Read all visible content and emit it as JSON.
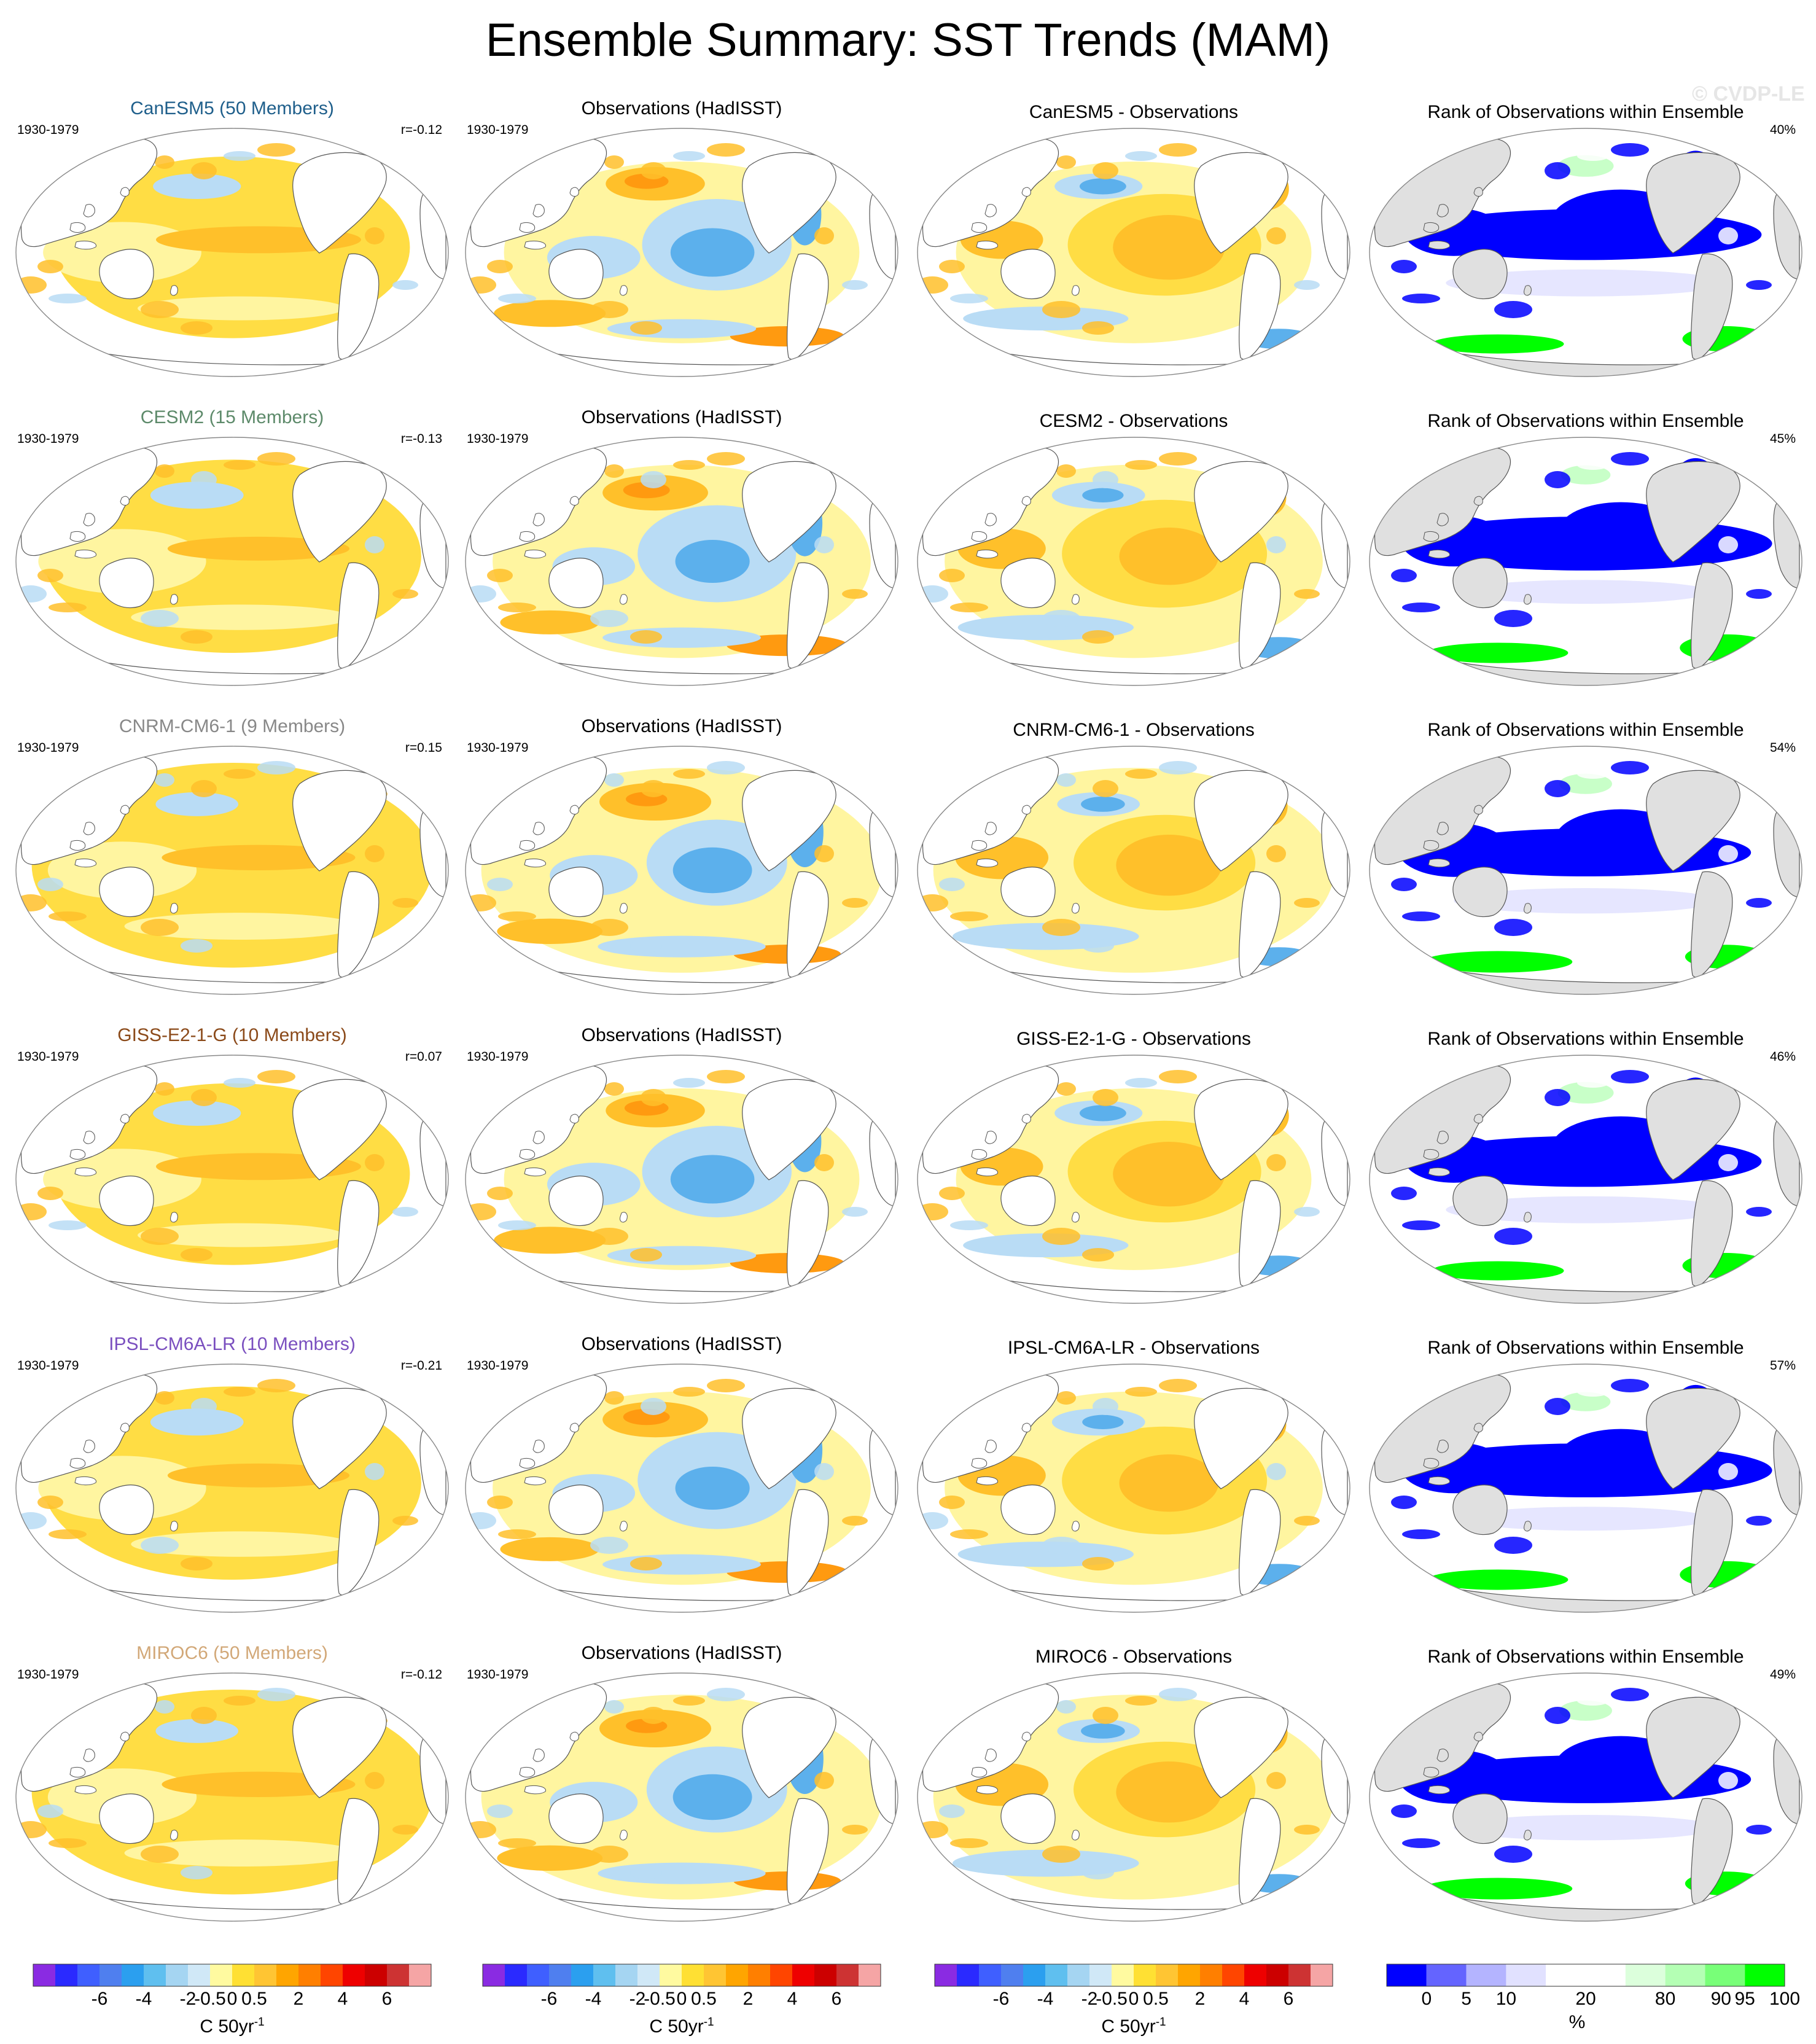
{
  "title": "Ensemble Summary: SST Trends (MAM)",
  "watermark": "© CVDP-LE",
  "period": "1930-1979",
  "obs_title": "Observations (HadISST)",
  "rank_title": "Rank of Observations within Ensemble",
  "rows": [
    {
      "model_title": "CanESM5 (50 Members)",
      "model_color": "#1f5f8b",
      "r": "r=-0.12",
      "diff_title": "CanESM5 - Observations",
      "rank_pct": "40%"
    },
    {
      "model_title": "CESM2 (15 Members)",
      "model_color": "#5d8a6a",
      "r": "r=-0.13",
      "diff_title": "CESM2 - Observations",
      "rank_pct": "45%"
    },
    {
      "model_title": "CNRM-CM6-1 (9 Members)",
      "model_color": "#888888",
      "r": "r=0.15",
      "diff_title": "CNRM-CM6-1 - Observations",
      "rank_pct": "54%"
    },
    {
      "model_title": "GISS-E2-1-G (10 Members)",
      "model_color": "#8b4a1a",
      "r": "r=0.07",
      "diff_title": "GISS-E2-1-G - Observations",
      "rank_pct": "46%"
    },
    {
      "model_title": "IPSL-CM6A-LR (10 Members)",
      "model_color": "#7a4fbf",
      "r": "r=-0.21",
      "diff_title": "IPSL-CM6A-LR - Observations",
      "rank_pct": "57%"
    },
    {
      "model_title": "MIROC6 (50 Members)",
      "model_color": "#d2a878",
      "r": "r=-0.12",
      "diff_title": "MIROC6 - Observations",
      "rank_pct": "49%"
    }
  ],
  "trend_colorbar": {
    "colors": [
      "#8a2be2",
      "#2a2aff",
      "#3f5fff",
      "#4f7fef",
      "#2b9fef",
      "#5fbfef",
      "#a5d5f2",
      "#d0e8f7",
      "#fffaa0",
      "#ffe033",
      "#ffc533",
      "#ffa500",
      "#ff7f00",
      "#ff4500",
      "#ee0000",
      "#cc0000",
      "#cd3333",
      "#f5a5a5"
    ],
    "ticks": [
      "-6",
      "-4",
      "-2",
      "-0.5",
      "0",
      "0.5",
      "2",
      "4",
      "6"
    ],
    "unit": "C 50yr",
    "unit_sup": "-1"
  },
  "rank_colorbar": {
    "colors": [
      "#0000ff",
      "#6464ff",
      "#b4b4ff",
      "#e1e1ff",
      "#ffffff",
      "#ffffff",
      "#dcffdc",
      "#b4ffb4",
      "#78ff78",
      "#00ff00"
    ],
    "ticks": [
      "0",
      "5",
      "10",
      "20",
      "80",
      "90",
      "95",
      "100"
    ],
    "unit": "%"
  },
  "palette": {
    "warm_light": "#fff5a0",
    "warm_mid": "#ffdd44",
    "warm_strong": "#ffc02a",
    "warm_deep": "#ff9a10",
    "cool_light": "#b9dcf5",
    "cool_mid": "#5cb0ec",
    "cool_strong": "#1f8fe8",
    "rank_low": "#0000ff",
    "rank_high": "#00ff00",
    "land_rank": "#e0e0e0"
  }
}
